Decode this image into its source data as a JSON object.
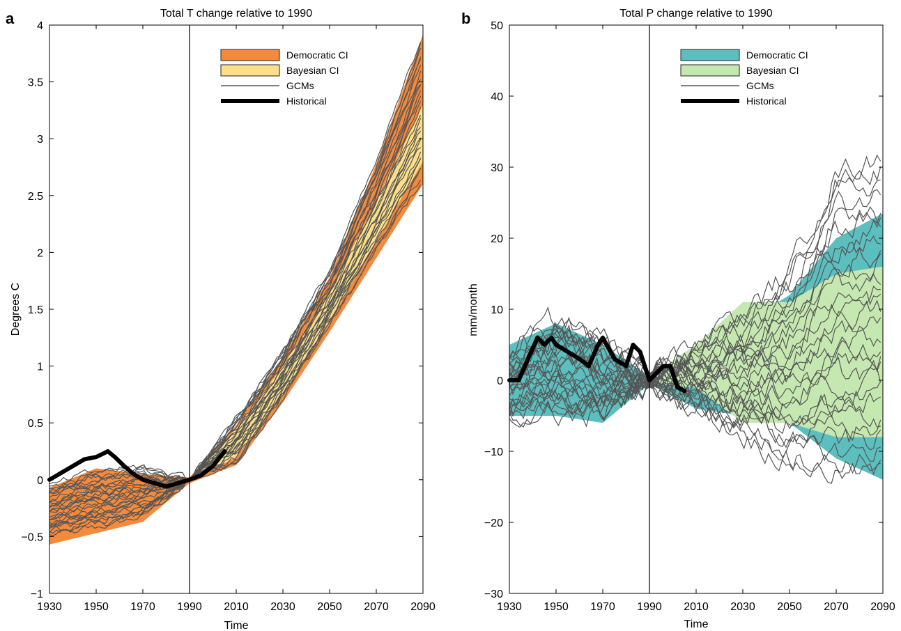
{
  "chart_data": [
    {
      "panel": "a",
      "type": "line",
      "title": "Total T change relative to 1990",
      "xlabel": "Time",
      "ylabel": "Degrees C",
      "xlim": [
        1930,
        2090
      ],
      "ylim": [
        -1,
        4
      ],
      "xticks": [
        1930,
        1950,
        1970,
        1990,
        2010,
        2030,
        2050,
        2070,
        2090
      ],
      "yticks": [
        -1,
        -0.5,
        0,
        0.5,
        1,
        1.5,
        2,
        2.5,
        3,
        3.5,
        4
      ],
      "ytick_labels": [
        "−1",
        "−0.5",
        "0",
        "0.5",
        "1",
        "1.5",
        "2",
        "2.5",
        "3",
        "3.5",
        "4"
      ],
      "reference_line_x": 1990,
      "legend_position": "top-right",
      "legend": [
        {
          "label": "Democratic CI",
          "kind": "band",
          "color": "#f58a3c"
        },
        {
          "label": "Bayesian CI",
          "kind": "band",
          "color": "#fcdf88"
        },
        {
          "label": "GCMs",
          "kind": "line",
          "color": "#555555"
        },
        {
          "label": "Historical",
          "kind": "thick-line",
          "color": "#000000"
        }
      ],
      "bands": [
        {
          "name": "Democratic CI",
          "color": "#f58a3c",
          "x": [
            1930,
            1950,
            1970,
            1990,
            2010,
            2030,
            2050,
            2070,
            2090
          ],
          "lower": [
            -0.57,
            -0.47,
            -0.37,
            -0.03,
            0.13,
            0.68,
            1.3,
            1.95,
            2.6
          ],
          "upper": [
            -0.07,
            0.1,
            0.05,
            0.02,
            0.48,
            1.08,
            1.78,
            2.78,
            3.92
          ]
        },
        {
          "name": "Bayesian CI",
          "color": "#fcdf88",
          "x": [
            1990,
            2010,
            2030,
            2050,
            2070,
            2090
          ],
          "lower": [
            -0.01,
            0.2,
            0.75,
            1.4,
            2.1,
            2.8
          ],
          "upper": [
            0.01,
            0.45,
            1.0,
            1.65,
            2.45,
            3.3
          ]
        }
      ],
      "gcm_ensemble": {
        "count": 28,
        "color": "#555555",
        "x": [
          1930,
          1950,
          1970,
          1990,
          2010,
          2030,
          2050,
          2070,
          2090
        ],
        "lower": [
          -0.5,
          -0.43,
          -0.33,
          0.0,
          0.15,
          0.72,
          1.35,
          2.0,
          2.62
        ],
        "upper": [
          -0.05,
          0.08,
          0.12,
          0.0,
          0.55,
          1.15,
          1.85,
          2.8,
          3.95
        ]
      },
      "historical": {
        "x": [
          1930,
          1935,
          1940,
          1945,
          1950,
          1955,
          1958,
          1962,
          1966,
          1970,
          1975,
          1980,
          1985,
          1990,
          1995,
          2000,
          2005
        ],
        "y": [
          0.0,
          0.06,
          0.12,
          0.18,
          0.2,
          0.25,
          0.2,
          0.12,
          0.05,
          0.0,
          -0.03,
          -0.06,
          -0.03,
          0.0,
          0.04,
          0.12,
          0.25
        ]
      }
    },
    {
      "panel": "b",
      "type": "line",
      "title": "Total P change relative to 1990",
      "xlabel": "Time",
      "ylabel": "mm/month",
      "xlim": [
        1930,
        2090
      ],
      "ylim": [
        -30,
        50
      ],
      "xticks": [
        1930,
        1950,
        1970,
        1990,
        2010,
        2030,
        2050,
        2070,
        2090
      ],
      "yticks": [
        -30,
        -20,
        -10,
        0,
        10,
        20,
        30,
        40,
        50
      ],
      "ytick_labels": [
        "−30",
        "−20",
        "−10",
        "0",
        "10",
        "20",
        "30",
        "40",
        "50"
      ],
      "reference_line_x": 1990,
      "legend_position": "top-right",
      "legend": [
        {
          "label": "Democratic CI",
          "kind": "band",
          "color": "#5bbfbf"
        },
        {
          "label": "Bayesian CI",
          "kind": "band",
          "color": "#c5e8b0"
        },
        {
          "label": "GCMs",
          "kind": "line",
          "color": "#555555"
        },
        {
          "label": "Historical",
          "kind": "thick-line",
          "color": "#000000"
        }
      ],
      "bands": [
        {
          "name": "Democratic CI",
          "color": "#5bbfbf",
          "x": [
            1930,
            1950,
            1970,
            1990,
            2010,
            2030,
            2050,
            2070,
            2090
          ],
          "lower": [
            -5,
            -5,
            -6,
            -0.5,
            -4,
            -5,
            -6,
            -11,
            -14
          ],
          "upper": [
            5,
            8,
            5,
            0.5,
            5,
            8,
            12,
            20,
            23.5
          ]
        },
        {
          "name": "Bayesian CI",
          "color": "#c5e8b0",
          "x": [
            1990,
            2010,
            2030,
            2050,
            2070,
            2090
          ],
          "lower": [
            -0.5,
            -1,
            -6,
            -6,
            -8,
            -8
          ],
          "upper": [
            0.5,
            5,
            11,
            11,
            15,
            16
          ]
        }
      ],
      "gcm_ensemble": {
        "count": 28,
        "color": "#555555",
        "x": [
          1930,
          1950,
          1970,
          1990,
          2010,
          2030,
          2050,
          2070,
          2090
        ],
        "lower": [
          -5,
          -5,
          -5,
          -1,
          -4,
          -8,
          -12,
          -14,
          -14
        ],
        "upper": [
          4,
          9,
          6,
          1,
          5,
          9,
          16,
          30,
          32
        ]
      },
      "historical": {
        "x": [
          1930,
          1934,
          1938,
          1942,
          1945,
          1948,
          1950,
          1955,
          1960,
          1964,
          1968,
          1970,
          1975,
          1980,
          1983,
          1986,
          1990,
          1993,
          1996,
          1999,
          2002,
          2005
        ],
        "y": [
          0,
          0,
          3,
          6,
          5,
          6,
          5,
          4,
          3,
          2,
          5,
          6,
          3,
          2,
          5,
          4,
          0,
          1,
          2,
          2,
          -1,
          -1.5
        ]
      }
    }
  ]
}
